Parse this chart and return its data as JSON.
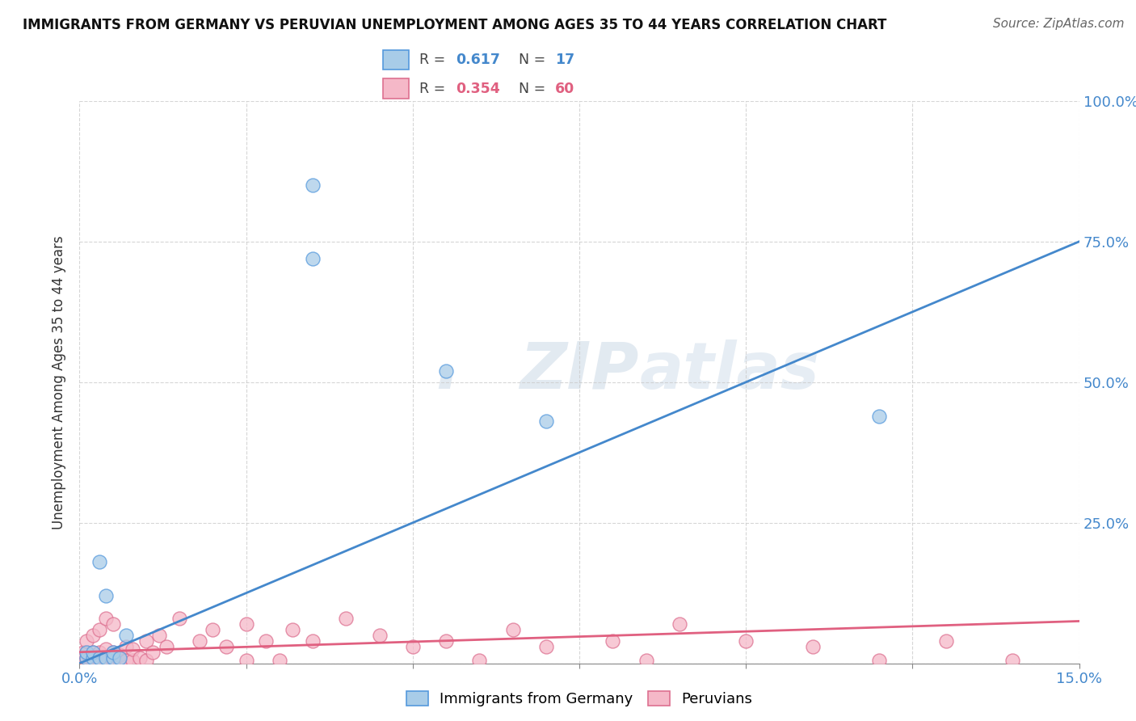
{
  "title": "IMMIGRANTS FROM GERMANY VS PERUVIAN UNEMPLOYMENT AMONG AGES 35 TO 44 YEARS CORRELATION CHART",
  "source": "Source: ZipAtlas.com",
  "ylabel": "Unemployment Among Ages 35 to 44 years",
  "xlim": [
    0.0,
    0.15
  ],
  "ylim": [
    0.0,
    1.0
  ],
  "blue_r": "0.617",
  "blue_n": "17",
  "pink_r": "0.354",
  "pink_n": "60",
  "legend_label_blue": "Immigrants from Germany",
  "legend_label_pink": "Peruvians",
  "blue_color": "#a8cce8",
  "pink_color": "#f5b8c8",
  "blue_line_color": "#4488cc",
  "pink_line_color": "#e06080",
  "blue_edge_color": "#5599dd",
  "pink_edge_color": "#dd7090",
  "watermark_dot": ".",
  "watermark_zip": "ZIP",
  "watermark_atlas": "atlas",
  "blue_scatter_x": [
    0.001,
    0.001,
    0.002,
    0.002,
    0.003,
    0.003,
    0.004,
    0.004,
    0.005,
    0.005,
    0.006,
    0.007,
    0.035,
    0.035,
    0.055,
    0.07,
    0.12
  ],
  "blue_scatter_y": [
    0.01,
    0.02,
    0.01,
    0.02,
    0.01,
    0.18,
    0.01,
    0.12,
    0.01,
    0.02,
    0.01,
    0.05,
    0.85,
    0.72,
    0.52,
    0.43,
    0.44
  ],
  "pink_scatter_x": [
    0.0005,
    0.001,
    0.001,
    0.001,
    0.001,
    0.0015,
    0.002,
    0.002,
    0.002,
    0.002,
    0.0025,
    0.003,
    0.003,
    0.003,
    0.003,
    0.004,
    0.004,
    0.004,
    0.004,
    0.005,
    0.005,
    0.005,
    0.005,
    0.006,
    0.006,
    0.007,
    0.007,
    0.008,
    0.008,
    0.009,
    0.01,
    0.01,
    0.011,
    0.012,
    0.013,
    0.015,
    0.018,
    0.02,
    0.022,
    0.025,
    0.025,
    0.028,
    0.03,
    0.032,
    0.035,
    0.04,
    0.045,
    0.05,
    0.055,
    0.06,
    0.065,
    0.07,
    0.08,
    0.085,
    0.09,
    0.1,
    0.11,
    0.12,
    0.13,
    0.14
  ],
  "pink_scatter_y": [
    0.02,
    0.005,
    0.01,
    0.02,
    0.04,
    0.01,
    0.005,
    0.01,
    0.02,
    0.05,
    0.01,
    0.005,
    0.01,
    0.02,
    0.06,
    0.005,
    0.01,
    0.025,
    0.08,
    0.005,
    0.01,
    0.02,
    0.07,
    0.005,
    0.015,
    0.005,
    0.03,
    0.005,
    0.025,
    0.01,
    0.005,
    0.04,
    0.02,
    0.05,
    0.03,
    0.08,
    0.04,
    0.06,
    0.03,
    0.005,
    0.07,
    0.04,
    0.005,
    0.06,
    0.04,
    0.08,
    0.05,
    0.03,
    0.04,
    0.005,
    0.06,
    0.03,
    0.04,
    0.005,
    0.07,
    0.04,
    0.03,
    0.005,
    0.04,
    0.005
  ],
  "blue_line_x0": 0.0,
  "blue_line_y0": 0.0,
  "blue_line_x1": 0.15,
  "blue_line_y1": 0.75,
  "pink_line_x0": 0.0,
  "pink_line_y0": 0.02,
  "pink_line_x1": 0.15,
  "pink_line_y1": 0.075
}
